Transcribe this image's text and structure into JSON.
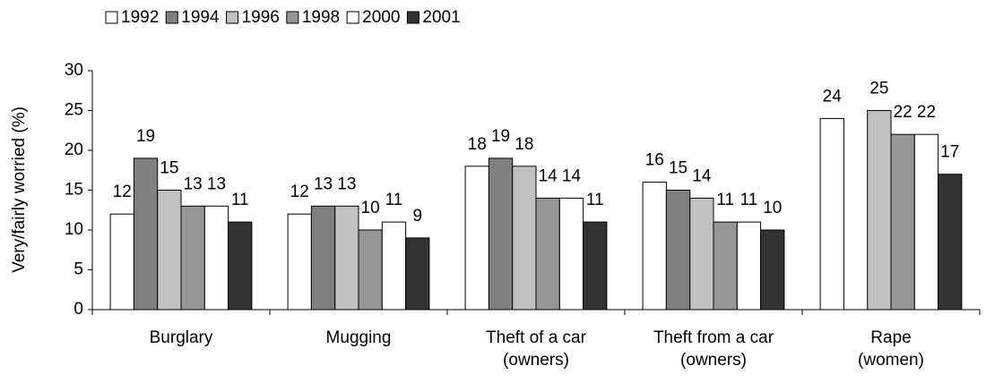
{
  "chart_data": {
    "type": "bar",
    "y_label": "Very/fairly worried (%)",
    "categories": [
      "Burglary",
      "Mugging",
      "Theft of a car (owners)",
      "Theft from a car (owners)",
      "Rape (women)"
    ],
    "series": [
      {
        "name": "1992",
        "color": "#ffffff",
        "values": [
          12,
          12,
          18,
          16,
          24
        ]
      },
      {
        "name": "1994",
        "color": "#808080",
        "values": [
          19,
          13,
          19,
          15,
          null
        ]
      },
      {
        "name": "1996",
        "color": "#c0c0c0",
        "values": [
          15,
          13,
          18,
          14,
          25
        ]
      },
      {
        "name": "1998",
        "color": "#969696",
        "values": [
          13,
          10,
          14,
          11,
          22
        ]
      },
      {
        "name": "2000",
        "color": "#ffffff",
        "values": [
          13,
          11,
          14,
          11,
          22
        ]
      },
      {
        "name": "2001",
        "color": "#333333",
        "values": [
          11,
          9,
          11,
          10,
          17
        ]
      }
    ],
    "ylim": [
      0,
      30
    ],
    "yticks": [
      0,
      5,
      10,
      15,
      20,
      25,
      30
    ],
    "grid": false,
    "legend": "top"
  }
}
